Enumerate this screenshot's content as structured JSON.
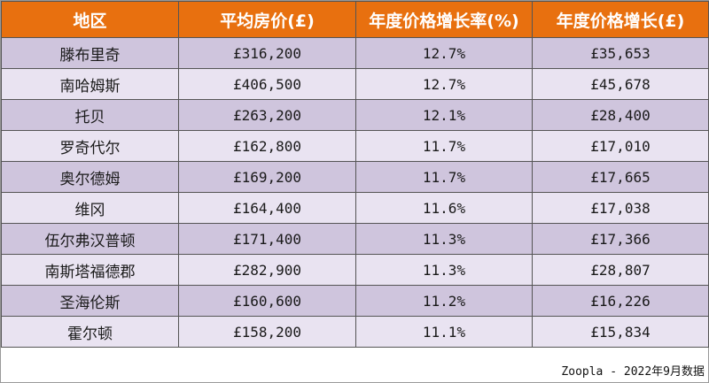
{
  "table": {
    "headers": [
      "地区",
      "平均房价(£)",
      "年度价格增长率(%)",
      "年度价格增长(£)"
    ],
    "rows": [
      [
        "滕布里奇",
        "£316,200",
        "12.7%",
        "£35,653"
      ],
      [
        "南哈姆斯",
        "£406,500",
        "12.7%",
        "£45,678"
      ],
      [
        "托贝",
        "£263,200",
        "12.1%",
        "£28,400"
      ],
      [
        "罗奇代尔",
        "£162,800",
        "11.7%",
        "£17,010"
      ],
      [
        "奥尔德姆",
        "£169,200",
        "11.7%",
        "£17,665"
      ],
      [
        "维冈",
        "£164,400",
        "11.6%",
        "£17,038"
      ],
      [
        "伍尔弗汉普顿",
        "£171,400",
        "11.3%",
        "£17,366"
      ],
      [
        "南斯塔福德郡",
        "£282,900",
        "11.3%",
        "£28,807"
      ],
      [
        "圣海伦斯",
        "£160,600",
        "11.2%",
        "£16,226"
      ],
      [
        "霍尔顿",
        "£158,200",
        "11.1%",
        "£15,834"
      ]
    ]
  },
  "footer": "Zoopla - 2022年9月数据",
  "colors": {
    "header_bg": "#e8700f",
    "row_odd": "#cfc5dd",
    "row_even": "#e9e3f1"
  }
}
